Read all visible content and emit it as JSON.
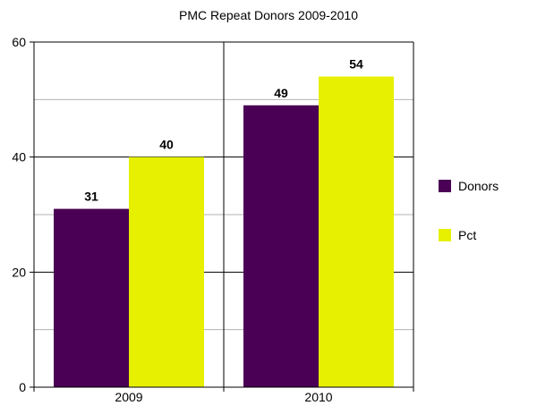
{
  "chart_data": {
    "type": "bar",
    "title": "PMC Repeat Donors 2009-2010",
    "categories": [
      "2009",
      "2010"
    ],
    "series": [
      {
        "name": "Donors",
        "values": [
          31,
          49
        ],
        "color": "#4a0054"
      },
      {
        "name": "Pct",
        "values": [
          40,
          54
        ],
        "color": "#e6f000"
      }
    ],
    "ylim": [
      0,
      60
    ],
    "yticks": [
      0,
      20,
      40,
      60
    ],
    "minor_grid": [
      10,
      30,
      50
    ],
    "grid": true,
    "data_labels": true,
    "legend_position": "right"
  }
}
